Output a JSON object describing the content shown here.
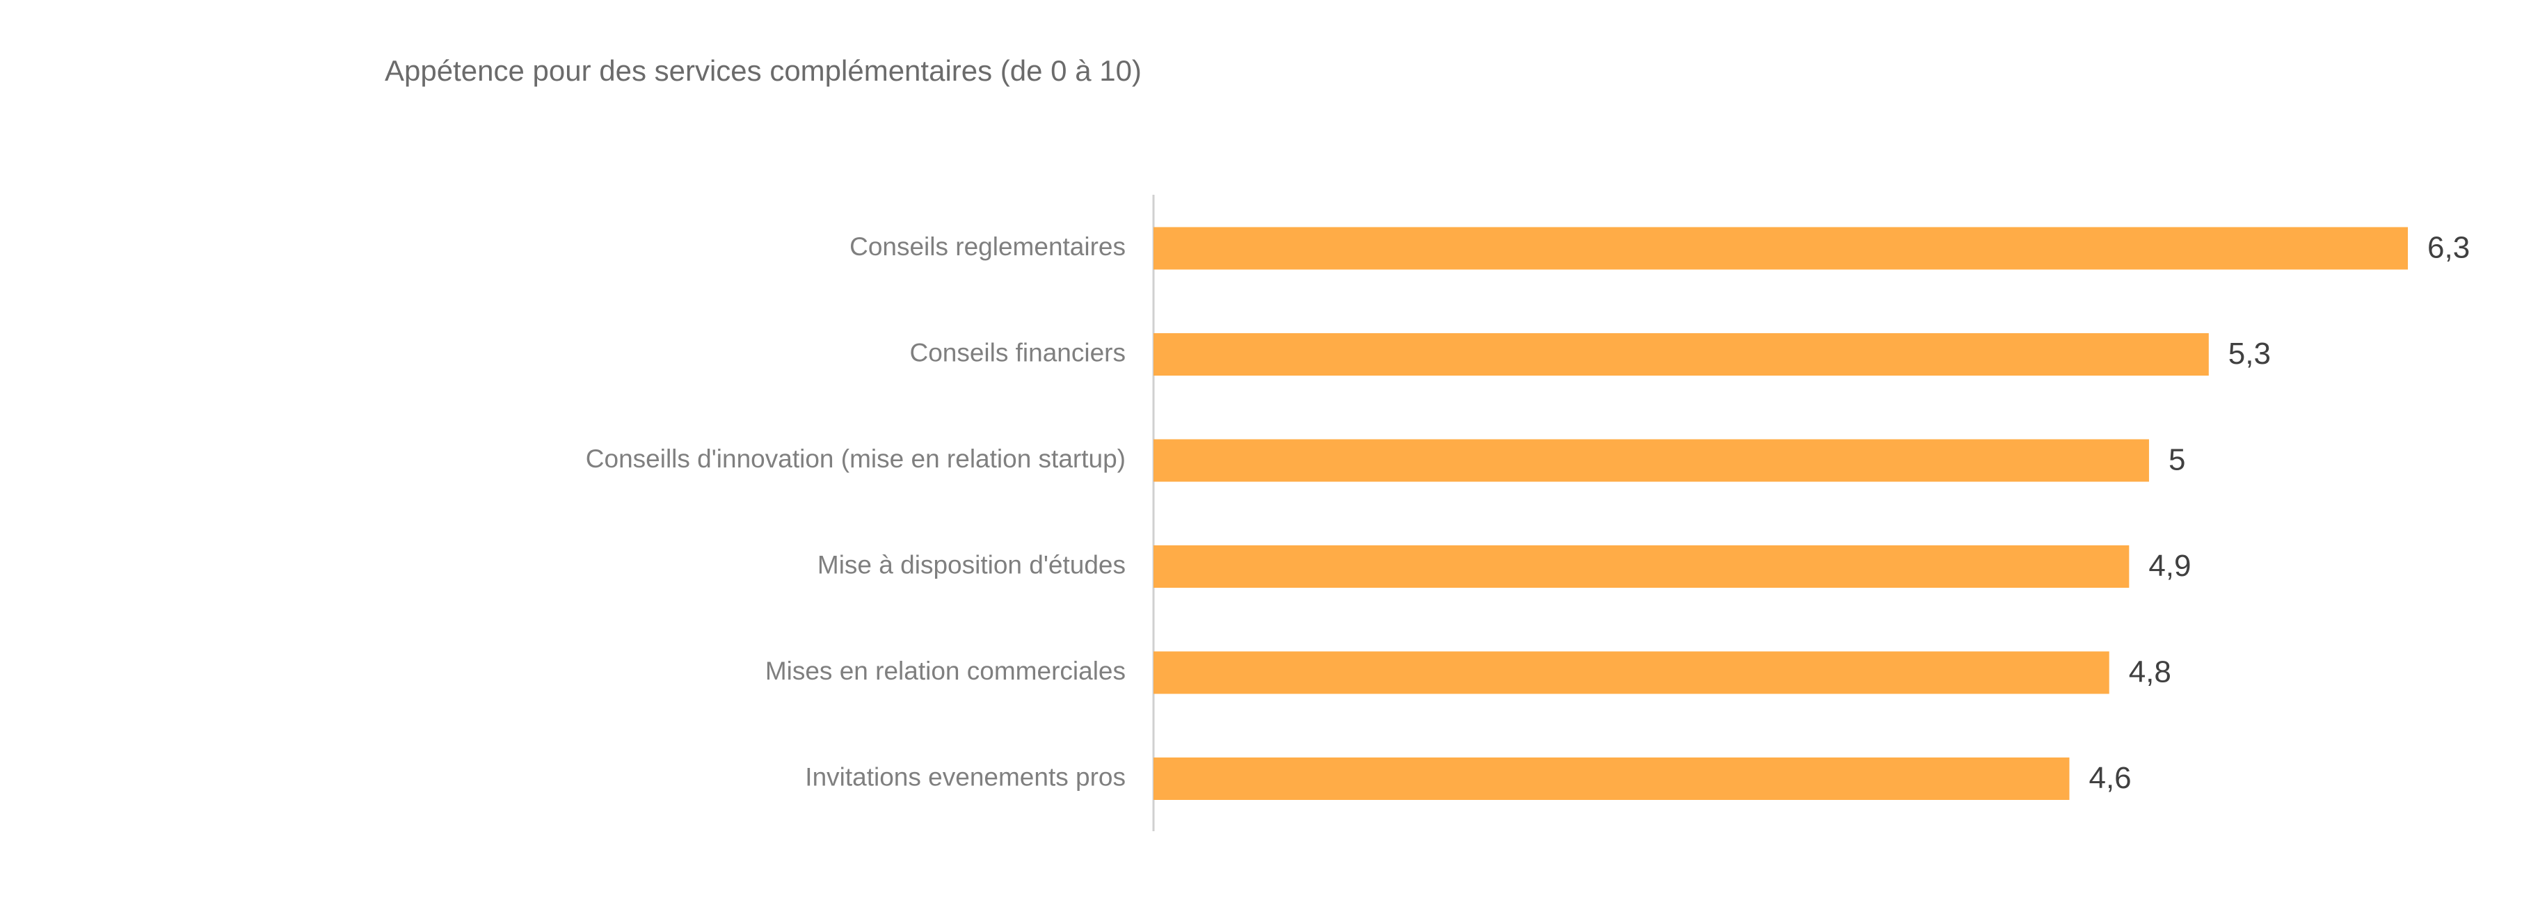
{
  "chart_data": {
    "type": "bar",
    "orientation": "horizontal",
    "title": "Appétence pour des services complémentaires (de 0 à 10)",
    "categories": [
      "Conseils reglementaires",
      "Conseils financiers",
      "Conseills d'innovation (mise en relation startup)",
      "Mise à disposition d'études",
      "Mises en relation commerciales",
      "Invitations evenements pros"
    ],
    "values": [
      6.3,
      5.3,
      5,
      4.9,
      4.8,
      4.6
    ],
    "value_labels": [
      "6,3",
      "5,3",
      "5",
      "4,9",
      "4,8",
      "4,6"
    ],
    "color": "#ffac47"
  }
}
